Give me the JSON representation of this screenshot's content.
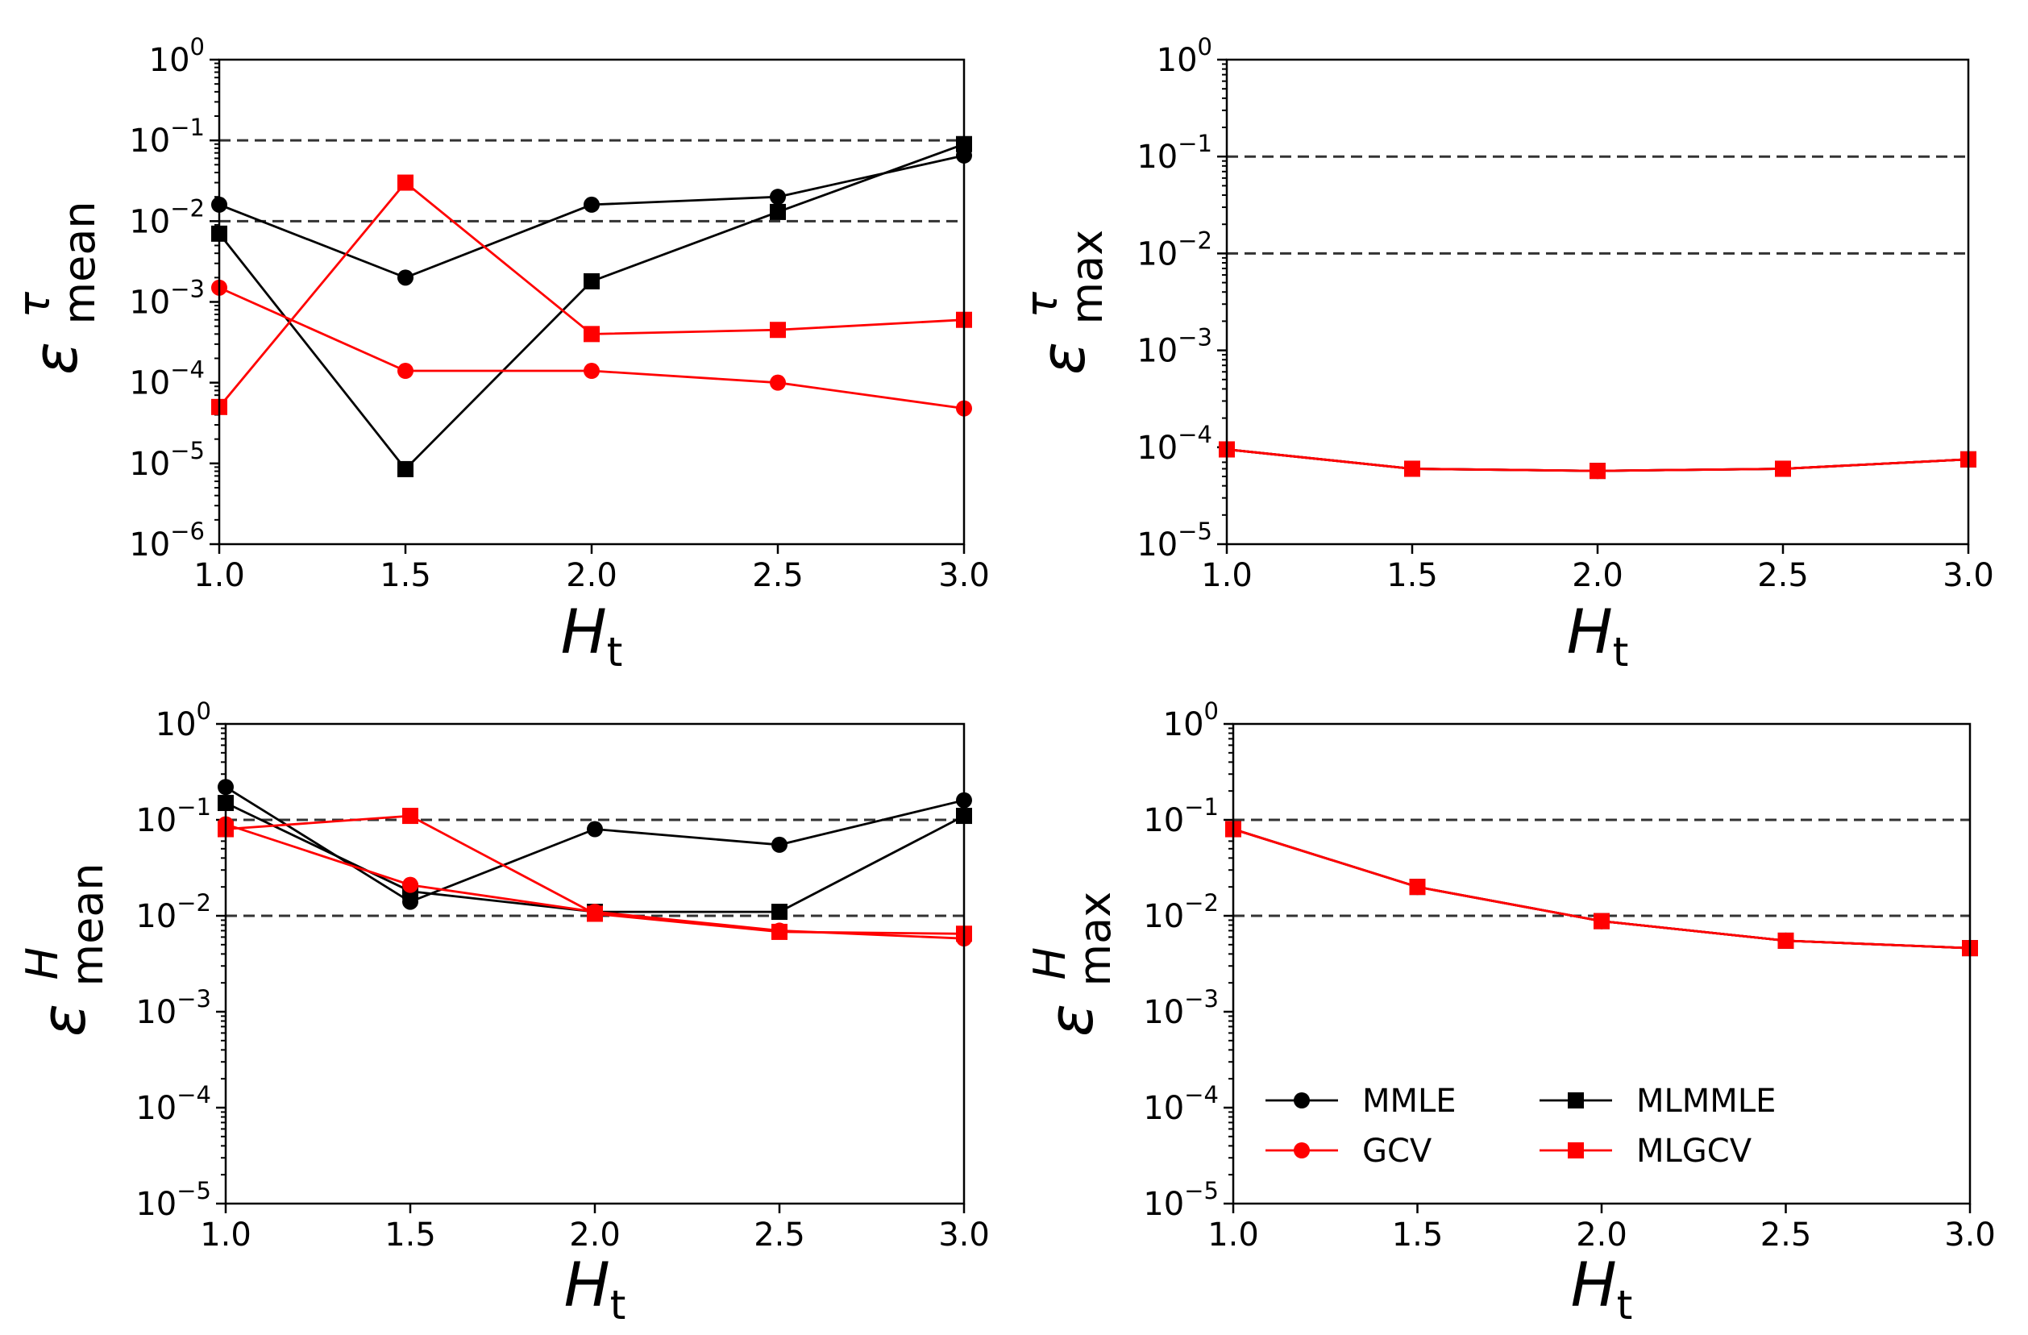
{
  "figure": {
    "x_values": [
      1.0,
      1.5,
      2.0,
      2.5,
      3.0
    ],
    "x_tick_labels": [
      "1.0",
      "1.5",
      "2.0",
      "2.5",
      "3.0"
    ],
    "xlim": [
      1.0,
      3.0
    ],
    "reference_lines": [
      0.1,
      0.01
    ],
    "colors": {
      "black": "#000000",
      "red": "#ff0000",
      "reference": "#333333"
    },
    "xlabel": {
      "main": "H",
      "sub": "t"
    }
  },
  "chart_data": [
    {
      "type": "line",
      "id": "tau-mean",
      "ylabel": {
        "base": "ε",
        "sup": "τ",
        "sub": "mean"
      },
      "xlabel": "H_t",
      "yscale": "log",
      "ylim": [
        1e-06,
        1
      ],
      "y_tick_exponents": [
        0,
        -1,
        -2,
        -3,
        -4,
        -5,
        -6
      ],
      "series": [
        {
          "name": "MMLE",
          "color": "#000000",
          "marker": "circle",
          "values": [
            0.016,
            0.002,
            0.016,
            0.02,
            0.065
          ]
        },
        {
          "name": "MLMMLE",
          "color": "#000000",
          "marker": "square",
          "values": [
            0.007,
            8.5e-06,
            0.0018,
            0.013,
            0.09
          ]
        },
        {
          "name": "GCV",
          "color": "#ff0000",
          "marker": "circle",
          "values": [
            0.0015,
            0.00014,
            0.00014,
            0.0001,
            4.8e-05
          ]
        },
        {
          "name": "MLGCV",
          "color": "#ff0000",
          "marker": "square",
          "values": [
            5e-05,
            0.03,
            0.0004,
            0.00045,
            0.0006
          ]
        }
      ]
    },
    {
      "type": "line",
      "id": "tau-max",
      "ylabel": {
        "base": "ε",
        "sup": "τ",
        "sub": "max"
      },
      "xlabel": "H_t",
      "yscale": "log",
      "ylim": [
        1e-05,
        1
      ],
      "y_tick_exponents": [
        0,
        -1,
        -2,
        -3,
        -4,
        -5
      ],
      "series": [
        {
          "name": "MMLE",
          "color": "#000000",
          "marker": "circle",
          "values": [
            9.5e-05,
            6e-05,
            5.7e-05,
            6e-05,
            7.5e-05
          ]
        },
        {
          "name": "MLMMLE",
          "color": "#000000",
          "marker": "square",
          "values": [
            9.5e-05,
            6e-05,
            5.7e-05,
            6e-05,
            7.5e-05
          ]
        },
        {
          "name": "GCV",
          "color": "#ff0000",
          "marker": "circle",
          "values": [
            9.5e-05,
            6e-05,
            5.7e-05,
            6e-05,
            7.5e-05
          ]
        },
        {
          "name": "MLGCV",
          "color": "#ff0000",
          "marker": "square",
          "values": [
            9.5e-05,
            6e-05,
            5.7e-05,
            6e-05,
            7.5e-05
          ]
        }
      ]
    },
    {
      "type": "line",
      "id": "H-mean",
      "ylabel": {
        "base": "ε",
        "sup": "H",
        "sub": "mean"
      },
      "xlabel": "H_t",
      "yscale": "log",
      "ylim": [
        1e-05,
        1
      ],
      "y_tick_exponents": [
        0,
        -1,
        -2,
        -3,
        -4,
        -5
      ],
      "series": [
        {
          "name": "MMLE",
          "color": "#000000",
          "marker": "circle",
          "values": [
            0.22,
            0.014,
            0.08,
            0.055,
            0.16
          ]
        },
        {
          "name": "MLMMLE",
          "color": "#000000",
          "marker": "square",
          "values": [
            0.15,
            0.018,
            0.011,
            0.011,
            0.11
          ]
        },
        {
          "name": "GCV",
          "color": "#ff0000",
          "marker": "circle",
          "values": [
            0.09,
            0.021,
            0.011,
            0.007,
            0.0058
          ]
        },
        {
          "name": "MLGCV",
          "color": "#ff0000",
          "marker": "square",
          "values": [
            0.08,
            0.11,
            0.0105,
            0.0068,
            0.0065
          ]
        }
      ]
    },
    {
      "type": "line",
      "id": "H-max",
      "ylabel": {
        "base": "ε",
        "sup": "H",
        "sub": "max"
      },
      "xlabel": "H_t",
      "yscale": "log",
      "ylim": [
        1e-05,
        1
      ],
      "y_tick_exponents": [
        0,
        -1,
        -2,
        -3,
        -4,
        -5
      ],
      "legend": {
        "placement": "lower-left",
        "columns": 2,
        "order": [
          "MMLE",
          "MLMMLE",
          "GCV",
          "MLGCV"
        ]
      },
      "series": [
        {
          "name": "MMLE",
          "color": "#000000",
          "marker": "circle",
          "values": [
            0.08,
            0.02,
            0.0088,
            0.0055,
            0.0046
          ]
        },
        {
          "name": "MLMMLE",
          "color": "#000000",
          "marker": "square",
          "values": [
            0.08,
            0.02,
            0.0088,
            0.0055,
            0.0046
          ]
        },
        {
          "name": "GCV",
          "color": "#ff0000",
          "marker": "circle",
          "values": [
            0.08,
            0.02,
            0.0088,
            0.0055,
            0.0046
          ]
        },
        {
          "name": "MLGCV",
          "color": "#ff0000",
          "marker": "square",
          "values": [
            0.08,
            0.02,
            0.0088,
            0.0055,
            0.0046
          ]
        }
      ]
    }
  ]
}
